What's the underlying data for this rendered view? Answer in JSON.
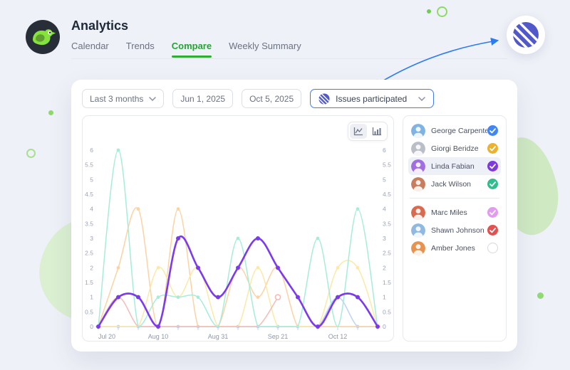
{
  "header": {
    "title": "Analytics",
    "tabs": [
      {
        "label": "Calendar",
        "active": false
      },
      {
        "label": "Trends",
        "active": false
      },
      {
        "label": "Compare",
        "active": true
      },
      {
        "label": "Weekly Summary",
        "active": false
      }
    ]
  },
  "filters": {
    "range_select": "Last 3 months",
    "date_from": "Jun 1, 2025",
    "date_to": "Oct 5, 2025",
    "metric_select": "Issues participated"
  },
  "chart_toggle": {
    "options": [
      "line-chart",
      "bar-chart"
    ],
    "active": "line-chart"
  },
  "chart_data": {
    "type": "line",
    "title": "",
    "x": [
      "Jul 20",
      "Jul 27",
      "Aug 3",
      "Aug 10",
      "Aug 17",
      "Aug 24",
      "Aug 31",
      "Sep 7",
      "Sep 14",
      "Sep 21",
      "Sep 28",
      "Oct 5",
      "Oct 12",
      "Oct 19",
      "Oct 26"
    ],
    "x_labels_shown": [
      "Jul 20",
      "Aug 10",
      "Aug 31",
      "Sep 21",
      "Oct 12"
    ],
    "ylim": [
      0,
      6
    ],
    "y_step": 0.5,
    "grid": false,
    "y_axis_sides": "both",
    "legend_position": "none",
    "series": [
      {
        "name": "George Carpenter",
        "color": "#bdd3f5",
        "emphasis": false,
        "markers": "all",
        "values": [
          0,
          0,
          0,
          0,
          0,
          0,
          0,
          0,
          0,
          0,
          0,
          0,
          1,
          0,
          0
        ]
      },
      {
        "name": "Giorgi Beridze",
        "color": "#fbd3a4",
        "emphasis": false,
        "markers": "nonzero",
        "values": [
          0,
          2,
          4,
          0,
          4,
          0,
          0,
          2,
          1,
          2,
          0,
          0,
          0,
          0,
          0
        ]
      },
      {
        "name": "Marc Miles",
        "color": "#fbe9a9",
        "emphasis": false,
        "markers": "nonzero",
        "values": [
          0,
          0,
          0,
          2,
          1,
          2,
          0,
          0,
          2,
          0,
          0,
          0,
          2,
          2,
          0
        ]
      },
      {
        "name": "Shawn Johnson",
        "color": "#f5bcb6",
        "emphasis": false,
        "markers": "nonzero",
        "end_marker": "open",
        "values": [
          0,
          1,
          0,
          0,
          0,
          0,
          0,
          0,
          0,
          1
        ]
      },
      {
        "name": "Jack Wilson",
        "color": "#a6edd9",
        "emphasis": false,
        "markers": "nonzero",
        "values": [
          0,
          6,
          0,
          1,
          1,
          1,
          0,
          3,
          0,
          0,
          0,
          3,
          0,
          4,
          0
        ]
      },
      {
        "name": "Linda Fabian",
        "color": "#7c3aed",
        "emphasis": true,
        "markers": "all",
        "values": [
          0,
          1,
          1,
          0,
          3,
          2,
          1,
          2,
          3,
          2,
          1,
          0,
          1,
          1,
          0
        ]
      }
    ]
  },
  "users": [
    {
      "name": "George Carpenter",
      "checked": true,
      "check_color": "#4285f4",
      "avatar_color": "#7fb3e3",
      "highlighted": false
    },
    {
      "name": "Giorgi Beridze",
      "checked": true,
      "check_color": "#ecb22e",
      "avatar_color": "#b9bec7",
      "highlighted": false
    },
    {
      "name": "Linda Fabian",
      "checked": true,
      "check_color": "#7e3bdb",
      "avatar_color": "#a06ee0",
      "highlighted": true
    },
    {
      "name": "Jack Wilson",
      "checked": true,
      "check_color": "#2fbe8f",
      "avatar_color": "#c77d5e",
      "highlighted": false
    },
    {
      "name": "Marc Miles",
      "checked": true,
      "check_color": "#e29bf0",
      "avatar_color": "#d96a50",
      "highlighted": false
    },
    {
      "name": "Shawn Johnson",
      "checked": true,
      "check_color": "#e05252",
      "avatar_color": "#8fb9e0",
      "highlighted": false
    },
    {
      "name": "Amber Jones",
      "checked": false,
      "check_color": "#d4d8e0",
      "avatar_color": "#e8924f",
      "highlighted": false
    }
  ],
  "colors": {
    "accent_green": "#23a532",
    "accent_blue": "#3d7df0",
    "brand_indigo": "#5159c9",
    "page_bg": "#eff1f8",
    "deco_green": "#8fd96a"
  }
}
